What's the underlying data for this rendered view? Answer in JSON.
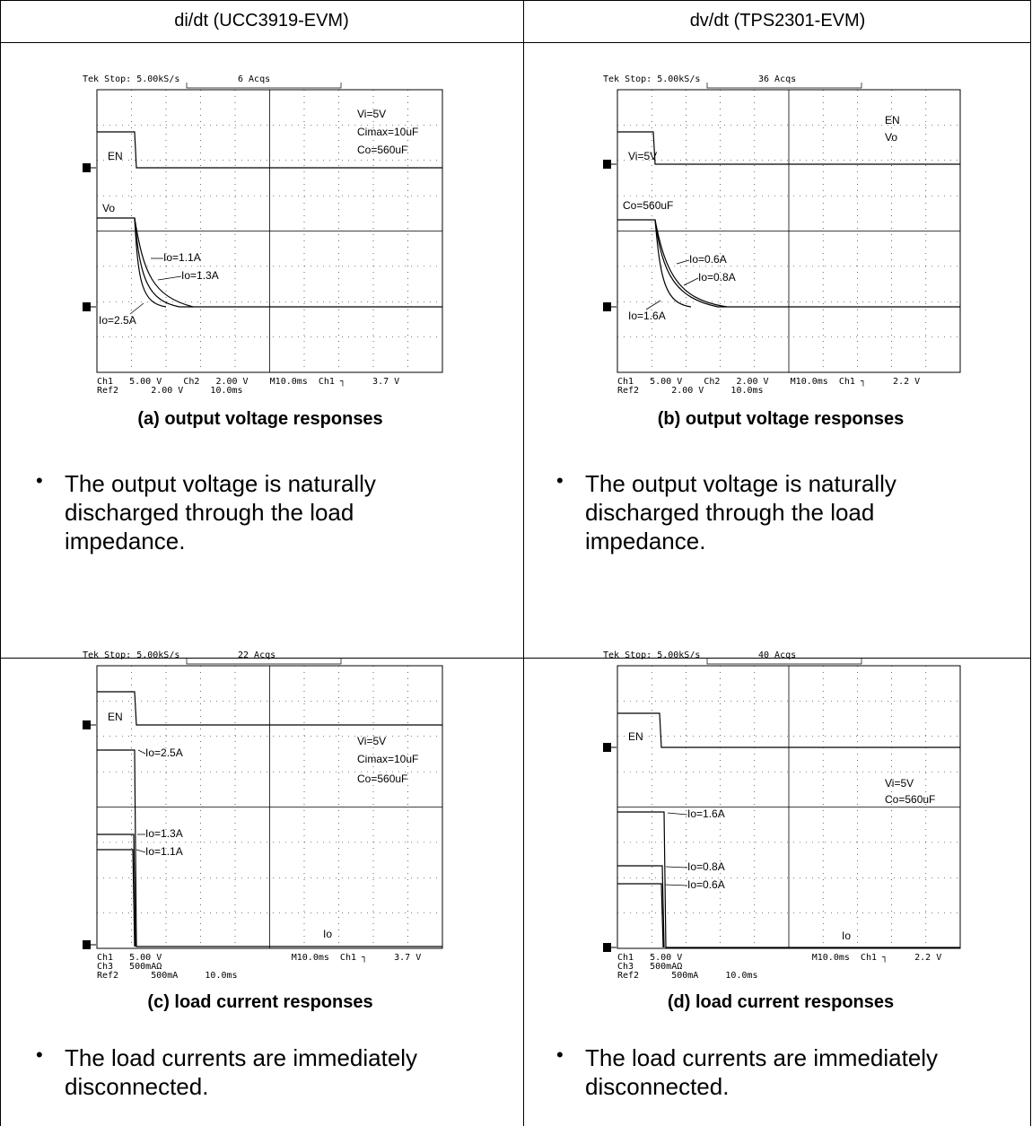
{
  "table": {
    "header": [
      "di/dt (UCC3919-EVM)",
      "dv/dt (TPS2301-EVM)"
    ],
    "cells": [
      {
        "scope": {
          "status": "Tek Stop: 5.00kS/s",
          "acqs": "6 Acqs",
          "footer": [
            "Ch1   5.00 V    Ch2   2.00 V    M10.0ms  Ch1 ┐     3.7 V",
            "Ref2      2.00 V     10.0ms"
          ],
          "labels": [
            "EN",
            "Vo",
            "Vi=5V",
            "Cimax=10uF",
            "Co=560uF",
            "Io=1.1A",
            "Io=1.3A",
            "Io=2.5A"
          ]
        },
        "caption": "(a) output voltage responses",
        "bullet": "The output voltage is naturally discharged through the load impedance."
      },
      {
        "scope": {
          "status": "Tek Stop: 5.00kS/s",
          "acqs": "36 Acqs",
          "footer": [
            "Ch1   5.00 V    Ch2   2.00 V    M10.0ms  Ch1 ┐     2.2 V",
            "Ref2      2.00 V     10.0ms"
          ],
          "labels": [
            "EN",
            "Vo",
            "Vi=5V",
            "Co=560uF",
            "Io=0.6A",
            "Io=0.8A",
            "Io=1.6A"
          ]
        },
        "caption": "(b) output voltage responses",
        "bullet": "The output voltage is naturally discharged through the load impedance."
      },
      {
        "scope": {
          "status": "Tek Stop: 5.00kS/s",
          "acqs": "22 Acqs",
          "footer": [
            "Ch1   5.00 V                        M10.0ms  Ch1 ┐     3.7 V",
            "Ch3   500mAΩ",
            "Ref2      500mA     10.0ms"
          ],
          "labels": [
            "EN",
            "Io=2.5A",
            "Io=1.3A",
            "Io=1.1A",
            "Vi=5V",
            "Cimax=10uF",
            "Co=560uF",
            "Io"
          ]
        },
        "caption": "(c) load current responses",
        "bullet": "The load currents are immediately disconnected."
      },
      {
        "scope": {
          "status": "Tek Stop: 5.00kS/s",
          "acqs": "40 Acqs",
          "footer": [
            "Ch1   5.00 V                        M10.0ms  Ch1 ┐     2.2 V",
            "Ch3   500mAΩ",
            "Ref2      500mA     10.0ms"
          ],
          "labels": [
            "EN",
            "Vi=5V",
            "Co=560uF",
            "Io=1.6A",
            "Io=0.8A",
            "Io=0.6A",
            "Io"
          ]
        },
        "caption": "(d) load current responses",
        "bullet": "The load currents are immediately disconnected."
      }
    ]
  }
}
